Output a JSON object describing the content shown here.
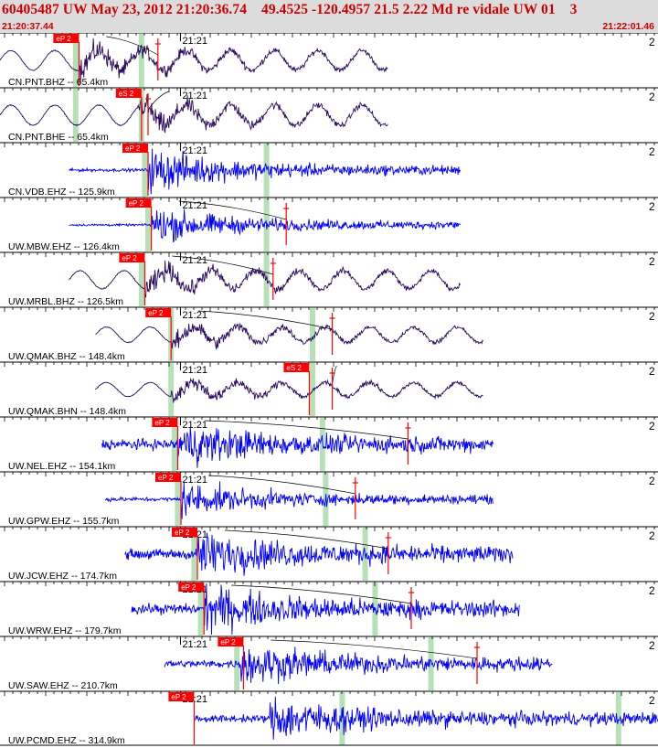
{
  "header": {
    "title": "60405487 UW May 23, 2012 21:20:36.74    49.4525 -120.4957 21.5 2.22 Md re vidale UW 01    3",
    "start_time": "21:20:37.44",
    "end_time": "21:22:01.46"
  },
  "colors": {
    "header_bg": "#dcdcdc",
    "title": "#cc0000",
    "trace_broadband": "#2a0a5e",
    "trace_shortperiod": "#0000ff",
    "pick_red": "#ff0000",
    "window_green": "#b8e0b8"
  },
  "chart_data": {
    "type": "seismogram",
    "time_tick_label": "21:21",
    "edge_label": "2",
    "traces": [
      {
        "label": "CN.PNT.BHZ -- 65.4km",
        "kind": "bb",
        "amp": 0.7,
        "start": 0.0,
        "end": 0.59,
        "onset": 0.12,
        "noise": 0.05,
        "p_pick": 0.12,
        "s_pick": 0.24,
        "phase_label": "eP 2",
        "green": [
          0.115,
          0.215
        ]
      },
      {
        "label": "CN.PNT.BHE -- 65.4km",
        "kind": "bb",
        "amp": 0.72,
        "start": 0.0,
        "end": 0.59,
        "onset": 0.21,
        "noise": 0.05,
        "p_pick": 0.215,
        "s_pick": 0.225,
        "phase_label": "eS 2",
        "green": [
          0.115,
          0.215
        ]
      },
      {
        "label": "CN.VDB.EHZ -- 125.9km",
        "kind": "sp",
        "amp": 0.65,
        "start": 0.105,
        "end": 0.7,
        "onset": 0.225,
        "noise": 0.08,
        "p_pick": 0.225,
        "s_pick": null,
        "phase_label": "eP 2",
        "green": [
          0.22,
          0.405
        ]
      },
      {
        "label": "UW.MBW.EHZ -- 126.4km",
        "kind": "sp",
        "amp": 0.55,
        "start": 0.105,
        "end": 0.7,
        "onset": 0.23,
        "noise": 0.07,
        "p_pick": 0.23,
        "s_pick": 0.435,
        "phase_label": "eP 2",
        "green": [
          0.225,
          0.405
        ]
      },
      {
        "label": "UW.MRBL.BHZ -- 126.5km",
        "kind": "bb",
        "amp": 0.65,
        "start": 0.105,
        "end": 0.7,
        "onset": 0.22,
        "noise": 0.06,
        "p_pick": 0.22,
        "s_pick": 0.415,
        "phase_label": "eP 2",
        "green": [
          0.215,
          0.405
        ]
      },
      {
        "label": "UW.QMAK.BHZ -- 148.4km",
        "kind": "bb",
        "amp": 0.55,
        "start": 0.145,
        "end": 0.735,
        "onset": 0.26,
        "noise": 0.05,
        "p_pick": 0.26,
        "s_pick": 0.505,
        "phase_label": "eP 2",
        "green": [
          0.26,
          0.475
        ]
      },
      {
        "label": "UW.QMAK.BHN -- 148.4km",
        "kind": "bb",
        "amp": 0.5,
        "start": 0.145,
        "end": 0.735,
        "onset": 0.26,
        "noise": 0.05,
        "p_pick": 0.47,
        "s_pick": 0.505,
        "phase_label": "eS 2",
        "green": [
          0.26,
          0.475
        ]
      },
      {
        "label": "UW.NEL.EHZ -- 154.1km",
        "kind": "sp",
        "amp": 0.55,
        "start": 0.155,
        "end": 0.75,
        "onset": 0.27,
        "noise": 0.32,
        "p_pick": 0.27,
        "s_pick": 0.62,
        "phase_label": "eP 2",
        "green": [
          0.265,
          0.49
        ]
      },
      {
        "label": "UW.GPW.EHZ -- 155.7km",
        "kind": "sp",
        "amp": 0.5,
        "start": 0.16,
        "end": 0.75,
        "onset": 0.275,
        "noise": 0.14,
        "p_pick": 0.275,
        "s_pick": 0.54,
        "phase_label": "eP 2",
        "green": [
          0.27,
          0.495
        ]
      },
      {
        "label": "UW.JCW.EHZ -- 174.7km",
        "kind": "sp",
        "amp": 0.6,
        "start": 0.19,
        "end": 0.78,
        "onset": 0.3,
        "noise": 0.3,
        "p_pick": 0.3,
        "s_pick": 0.59,
        "phase_label": "eP 2",
        "green": [
          0.295,
          0.555
        ]
      },
      {
        "label": "UW.WRW.EHZ -- 179.7km",
        "kind": "sp",
        "amp": 0.6,
        "start": 0.2,
        "end": 0.79,
        "onset": 0.31,
        "noise": 0.3,
        "p_pick": 0.31,
        "s_pick": 0.625,
        "phase_label": "eP 2",
        "green": [
          0.305,
          0.57
        ]
      },
      {
        "label": "UW.SAW.EHZ -- 210.7km",
        "kind": "sp",
        "amp": 0.6,
        "start": 0.25,
        "end": 0.84,
        "onset": 0.365,
        "noise": 0.22,
        "p_pick": 0.37,
        "s_pick": 0.725,
        "phase_label": "eP 2",
        "green": [
          0.36,
          0.655
        ]
      },
      {
        "label": "UW.PCMD.EHZ -- 314.9km",
        "kind": "sp",
        "amp": 0.62,
        "start": 0.295,
        "end": 1.0,
        "onset": 0.41,
        "noise": 0.2,
        "p_pick": 0.295,
        "s_pick": null,
        "phase_label": "eP 2",
        "green": [
          0.52,
          0.94
        ]
      }
    ]
  }
}
